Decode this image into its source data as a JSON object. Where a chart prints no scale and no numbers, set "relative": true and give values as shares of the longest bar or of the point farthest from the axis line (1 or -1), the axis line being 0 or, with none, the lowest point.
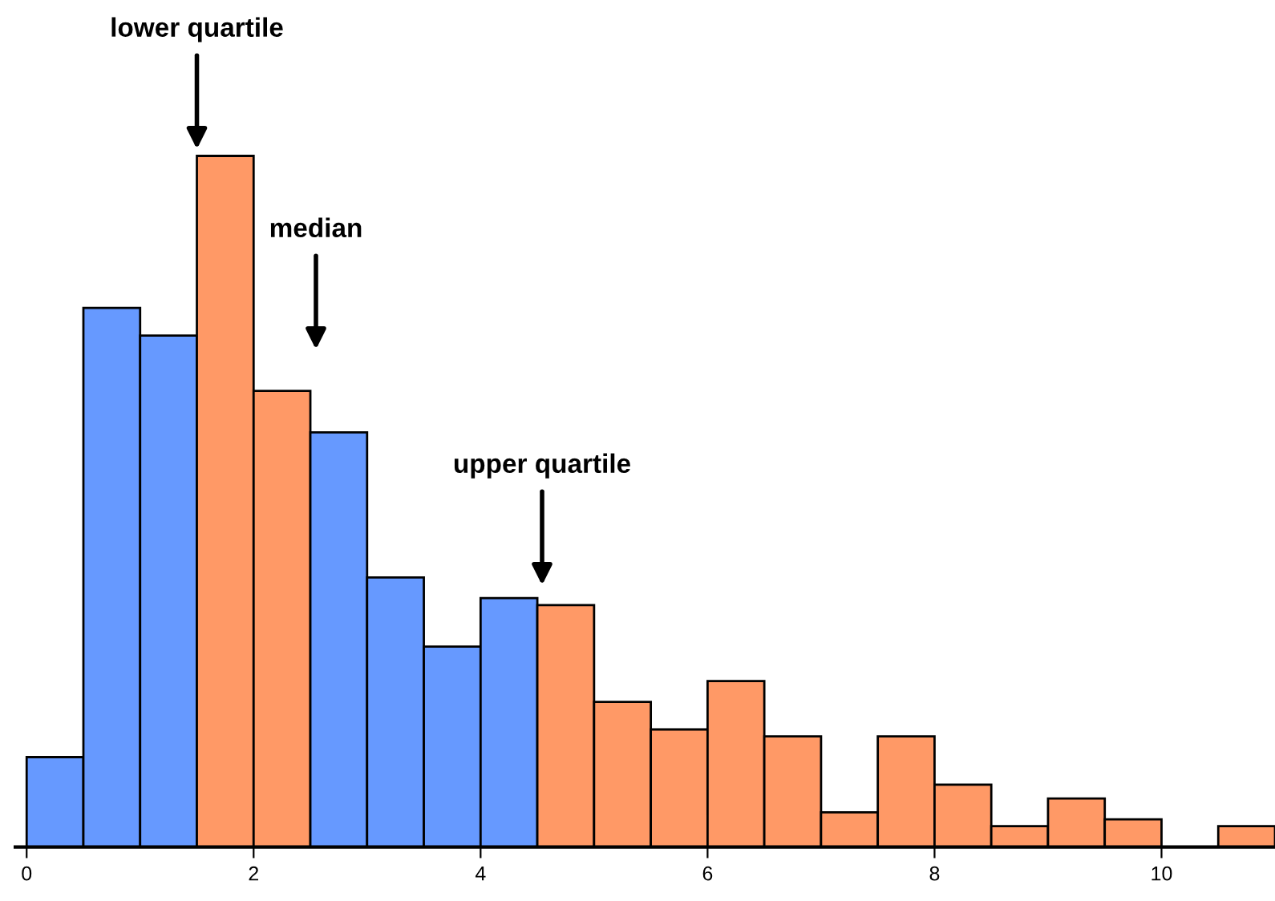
{
  "chart_data": {
    "type": "bar",
    "relative": true,
    "x": [
      0.25,
      0.75,
      1.25,
      1.75,
      2.25,
      2.75,
      3.25,
      3.75,
      4.25,
      4.75,
      5.25,
      5.75,
      6.25,
      6.75,
      7.25,
      7.75,
      8.25,
      8.75,
      9.25,
      9.75,
      10.25,
      10.75
    ],
    "values": [
      0.13,
      0.78,
      0.74,
      1,
      0.66,
      0.6,
      0.39,
      0.29,
      0.36,
      0.35,
      0.21,
      0.17,
      0.24,
      0.16,
      0.05,
      0.16,
      0.09,
      0.03,
      0.07,
      0.04,
      null,
      0.03
    ],
    "colors": [
      "#6699ff",
      "#6699ff",
      "#6699ff",
      "#ff9966",
      "#ff9966",
      "#6699ff",
      "#6699ff",
      "#6699ff",
      "#6699ff",
      "#ff9966",
      "#ff9966",
      "#ff9966",
      "#ff9966",
      "#ff9966",
      "#ff9966",
      "#ff9966",
      "#ff9966",
      "#ff9966",
      "#ff9966",
      "#ff9966",
      "#ff9966",
      "#ff9966"
    ],
    "xlim": [
      -0.1,
      11
    ],
    "xticks": [
      0,
      2,
      4,
      6,
      8,
      10
    ],
    "grid": false,
    "legend": false,
    "annotations": [
      {
        "text": "lower quartile",
        "x": 1.5,
        "y": 1.01
      },
      "median",
      "upper quartile"
    ]
  }
}
